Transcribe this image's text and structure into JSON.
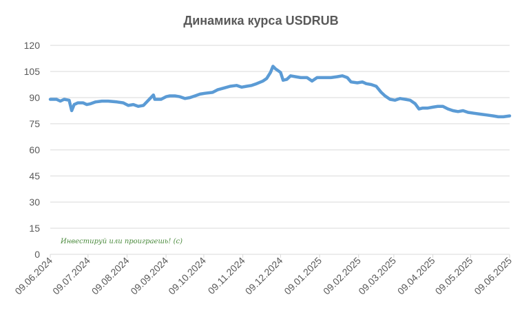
{
  "colors": {
    "line": "#5b9bd5",
    "grid": "#d9d9d9",
    "text": "#595959",
    "watermark": "#4a8a3c"
  },
  "watermark": "Инвестируй или проиграешь! (с)",
  "chart_data": {
    "type": "line",
    "title": "Динамика курса USDRUB",
    "xlabel": "",
    "ylabel": "",
    "ylim": [
      0,
      120
    ],
    "yticks": [
      0,
      15,
      30,
      45,
      60,
      75,
      90,
      105,
      120
    ],
    "xlim": [
      "2024-06-09",
      "2025-06-09"
    ],
    "xticks": [
      "09.06.2024",
      "09.07.2024",
      "09.08.2024",
      "09.09.2024",
      "09.10.2024",
      "09.11.2024",
      "09.12.2024",
      "09.01.2025",
      "09.02.2025",
      "09.03.2025",
      "09.04.2025",
      "09.05.2025",
      "09.06.2025"
    ],
    "grid": true,
    "legend": "none",
    "series": [
      {
        "points": [
          [
            "2024-06-09",
            89.0
          ],
          [
            "2024-06-14",
            89.0
          ],
          [
            "2024-06-17",
            88.0
          ],
          [
            "2024-06-20",
            89.0
          ],
          [
            "2024-06-24",
            88.5
          ],
          [
            "2024-06-26",
            82.5
          ],
          [
            "2024-06-28",
            86.0
          ],
          [
            "2024-07-01",
            87.0
          ],
          [
            "2024-07-05",
            87.0
          ],
          [
            "2024-07-08",
            86.0
          ],
          [
            "2024-07-11",
            86.5
          ],
          [
            "2024-07-15",
            87.5
          ],
          [
            "2024-07-20",
            88.0
          ],
          [
            "2024-07-25",
            88.0
          ],
          [
            "2024-08-01",
            87.5
          ],
          [
            "2024-08-06",
            87.0
          ],
          [
            "2024-08-10",
            85.5
          ],
          [
            "2024-08-14",
            86.0
          ],
          [
            "2024-08-18",
            85.0
          ],
          [
            "2024-08-22",
            85.5
          ],
          [
            "2024-08-26",
            88.5
          ],
          [
            "2024-08-30",
            91.5
          ],
          [
            "2024-08-31",
            89.0
          ],
          [
            "2024-09-05",
            89.0
          ],
          [
            "2024-09-09",
            90.5
          ],
          [
            "2024-09-12",
            91.0
          ],
          [
            "2024-09-16",
            91.0
          ],
          [
            "2024-09-20",
            90.5
          ],
          [
            "2024-09-24",
            89.5
          ],
          [
            "2024-09-28",
            90.0
          ],
          [
            "2024-10-02",
            91.0
          ],
          [
            "2024-10-06",
            92.0
          ],
          [
            "2024-10-10",
            92.5
          ],
          [
            "2024-10-16",
            93.0
          ],
          [
            "2024-10-20",
            94.5
          ],
          [
            "2024-10-25",
            95.5
          ],
          [
            "2024-10-30",
            96.5
          ],
          [
            "2024-11-04",
            97.0
          ],
          [
            "2024-11-08",
            96.0
          ],
          [
            "2024-11-12",
            96.5
          ],
          [
            "2024-11-16",
            97.0
          ],
          [
            "2024-11-20",
            98.0
          ],
          [
            "2024-11-25",
            99.5
          ],
          [
            "2024-11-28",
            101.0
          ],
          [
            "2024-12-01",
            104.5
          ],
          [
            "2024-12-03",
            108.0
          ],
          [
            "2024-12-05",
            106.5
          ],
          [
            "2024-12-09",
            104.5
          ],
          [
            "2024-12-11",
            100.0
          ],
          [
            "2024-12-14",
            100.5
          ],
          [
            "2024-12-17",
            102.5
          ],
          [
            "2024-12-21",
            102.0
          ],
          [
            "2024-12-25",
            101.5
          ],
          [
            "2024-12-30",
            101.5
          ],
          [
            "2025-01-03",
            99.5
          ],
          [
            "2025-01-07",
            101.5
          ],
          [
            "2025-01-12",
            101.5
          ],
          [
            "2025-01-18",
            101.5
          ],
          [
            "2025-01-23",
            102.0
          ],
          [
            "2025-01-27",
            102.5
          ],
          [
            "2025-01-31",
            101.5
          ],
          [
            "2025-02-03",
            99.0
          ],
          [
            "2025-02-08",
            98.5
          ],
          [
            "2025-02-12",
            99.0
          ],
          [
            "2025-02-15",
            98.0
          ],
          [
            "2025-02-19",
            97.5
          ],
          [
            "2025-02-23",
            96.5
          ],
          [
            "2025-02-27",
            93.0
          ],
          [
            "2025-03-02",
            91.0
          ],
          [
            "2025-03-06",
            89.0
          ],
          [
            "2025-03-10",
            88.5
          ],
          [
            "2025-03-14",
            89.5
          ],
          [
            "2025-03-18",
            89.0
          ],
          [
            "2025-03-22",
            88.5
          ],
          [
            "2025-03-26",
            86.5
          ],
          [
            "2025-03-29",
            83.5
          ],
          [
            "2025-04-01",
            84.0
          ],
          [
            "2025-04-05",
            84.0
          ],
          [
            "2025-04-09",
            84.5
          ],
          [
            "2025-04-13",
            85.0
          ],
          [
            "2025-04-17",
            85.0
          ],
          [
            "2025-04-21",
            83.5
          ],
          [
            "2025-04-25",
            82.5
          ],
          [
            "2025-04-29",
            82.0
          ],
          [
            "2025-05-03",
            82.5
          ],
          [
            "2025-05-07",
            81.5
          ],
          [
            "2025-05-12",
            81.0
          ],
          [
            "2025-05-17",
            80.5
          ],
          [
            "2025-05-22",
            80.0
          ],
          [
            "2025-05-27",
            79.5
          ],
          [
            "2025-05-31",
            79.0
          ],
          [
            "2025-06-04",
            79.0
          ],
          [
            "2025-06-09",
            79.5
          ]
        ]
      }
    ]
  }
}
